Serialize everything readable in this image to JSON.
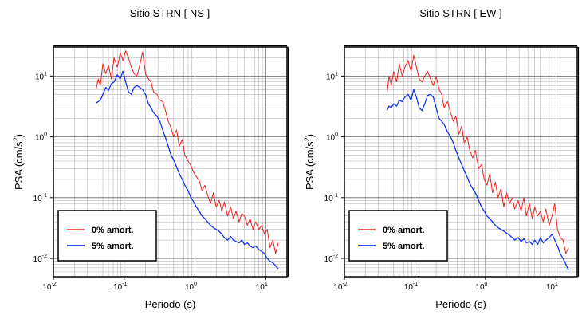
{
  "chart_data": [
    {
      "type": "line",
      "title": "Sitio STRN [ NS ]",
      "xlabel": "Periodo (s)",
      "ylabel_base": "PSA (cm/s",
      "ylabel_sup": "2",
      "ylabel_close": ")",
      "xscale": "log",
      "yscale": "log",
      "xlim": [
        0.01,
        20
      ],
      "ylim": [
        0.005,
        30
      ],
      "grid": true,
      "legend": "bottom-left",
      "xticks": [
        {
          "base": "10",
          "exp": "-2"
        },
        {
          "base": "10",
          "exp": "-1"
        },
        {
          "base": "10",
          "exp": "0"
        },
        {
          "base": "10",
          "exp": "1"
        }
      ],
      "yticks": [
        {
          "base": "10",
          "exp": "-2"
        },
        {
          "base": "10",
          "exp": "-1"
        },
        {
          "base": "10",
          "exp": "0"
        },
        {
          "base": "10",
          "exp": "1"
        }
      ],
      "series": [
        {
          "name": "0% amort.",
          "color": "#ee2222",
          "x": [
            0.04,
            0.043,
            0.046,
            0.05,
            0.055,
            0.06,
            0.066,
            0.072,
            0.08,
            0.088,
            0.096,
            0.105,
            0.115,
            0.126,
            0.138,
            0.151,
            0.166,
            0.182,
            0.2,
            0.22,
            0.24,
            0.26,
            0.29,
            0.32,
            0.35,
            0.38,
            0.42,
            0.46,
            0.5,
            0.55,
            0.6,
            0.66,
            0.72,
            0.8,
            0.88,
            0.96,
            1.05,
            1.15,
            1.26,
            1.38,
            1.51,
            1.66,
            1.82,
            2.0,
            2.2,
            2.4,
            2.6,
            2.9,
            3.2,
            3.5,
            3.8,
            4.2,
            4.6,
            5.0,
            5.5,
            6.0,
            6.6,
            7.2,
            8.0,
            8.8,
            9.6,
            10.5,
            11.5,
            12.6,
            13.8,
            15.0
          ],
          "y": [
            6,
            9,
            7,
            16,
            11,
            15,
            9,
            20,
            14,
            24,
            18,
            26,
            20,
            14,
            11,
            10,
            15,
            25,
            11,
            9,
            8,
            5.5,
            5,
            4,
            3.8,
            2.8,
            1.8,
            1.4,
            1.0,
            1.3,
            0.7,
            0.9,
            0.5,
            0.4,
            0.33,
            0.26,
            0.22,
            0.19,
            0.13,
            0.16,
            0.11,
            0.08,
            0.12,
            0.07,
            0.09,
            0.06,
            0.085,
            0.05,
            0.07,
            0.045,
            0.06,
            0.04,
            0.055,
            0.05,
            0.035,
            0.045,
            0.03,
            0.04,
            0.03,
            0.035,
            0.025,
            0.03,
            0.015,
            0.02,
            0.012,
            0.018
          ]
        },
        {
          "name": "5% amort.",
          "color": "#1133ee",
          "x": [
            0.04,
            0.043,
            0.046,
            0.05,
            0.055,
            0.06,
            0.066,
            0.072,
            0.08,
            0.088,
            0.096,
            0.105,
            0.115,
            0.126,
            0.138,
            0.151,
            0.166,
            0.182,
            0.2,
            0.22,
            0.24,
            0.26,
            0.29,
            0.32,
            0.35,
            0.38,
            0.42,
            0.46,
            0.5,
            0.55,
            0.6,
            0.66,
            0.72,
            0.8,
            0.88,
            0.96,
            1.05,
            1.15,
            1.26,
            1.38,
            1.51,
            1.66,
            1.82,
            2.0,
            2.2,
            2.4,
            2.6,
            2.9,
            3.2,
            3.5,
            3.8,
            4.2,
            4.6,
            5.0,
            5.5,
            6.0,
            6.6,
            7.2,
            8.0,
            8.8,
            9.6,
            10.5,
            11.5,
            12.6,
            13.8,
            15.0
          ],
          "y": [
            3.6,
            3.8,
            4.0,
            5.0,
            6.5,
            5.8,
            7.5,
            8.0,
            10.5,
            9.0,
            12.0,
            8.0,
            5.5,
            5.0,
            6.5,
            7.0,
            6.5,
            6.0,
            5.0,
            3.5,
            3.0,
            2.5,
            2.2,
            1.8,
            1.3,
            1.0,
            0.7,
            0.5,
            0.42,
            0.32,
            0.25,
            0.2,
            0.16,
            0.13,
            0.1,
            0.085,
            0.07,
            0.06,
            0.05,
            0.045,
            0.04,
            0.035,
            0.032,
            0.03,
            0.028,
            0.025,
            0.022,
            0.02,
            0.023,
            0.02,
            0.019,
            0.018,
            0.02,
            0.017,
            0.018,
            0.016,
            0.015,
            0.016,
            0.014,
            0.013,
            0.012,
            0.01,
            0.009,
            0.0085,
            0.0075,
            0.0068
          ]
        }
      ]
    },
    {
      "type": "line",
      "title": "Sitio STRN [ EW ]",
      "xlabel": "Periodo (s)",
      "ylabel_base": "PSA (cm/s",
      "ylabel_sup": "2",
      "ylabel_close": ")",
      "xscale": "log",
      "yscale": "log",
      "xlim": [
        0.01,
        20
      ],
      "ylim": [
        0.005,
        30
      ],
      "grid": true,
      "legend": "bottom-left",
      "xticks": [
        {
          "base": "10",
          "exp": "-2"
        },
        {
          "base": "10",
          "exp": "-1"
        },
        {
          "base": "10",
          "exp": "0"
        },
        {
          "base": "10",
          "exp": "1"
        }
      ],
      "yticks": [
        {
          "base": "10",
          "exp": "-2"
        },
        {
          "base": "10",
          "exp": "-1"
        },
        {
          "base": "10",
          "exp": "0"
        },
        {
          "base": "10",
          "exp": "1"
        }
      ],
      "series": [
        {
          "name": "0% amort.",
          "color": "#ee2222",
          "x": [
            0.04,
            0.043,
            0.046,
            0.05,
            0.055,
            0.06,
            0.066,
            0.072,
            0.08,
            0.088,
            0.096,
            0.105,
            0.115,
            0.126,
            0.138,
            0.151,
            0.166,
            0.182,
            0.2,
            0.22,
            0.24,
            0.26,
            0.29,
            0.32,
            0.35,
            0.38,
            0.42,
            0.46,
            0.5,
            0.55,
            0.6,
            0.66,
            0.72,
            0.8,
            0.88,
            0.96,
            1.05,
            1.15,
            1.26,
            1.38,
            1.51,
            1.66,
            1.82,
            2.0,
            2.2,
            2.4,
            2.6,
            2.9,
            3.2,
            3.5,
            3.8,
            4.2,
            4.6,
            5.0,
            5.5,
            6.0,
            6.6,
            7.2,
            8.0,
            8.8,
            9.6,
            10.5,
            11.5,
            12.6,
            13.8,
            15.0
          ],
          "y": [
            5,
            10,
            7,
            12,
            8,
            16,
            10,
            14,
            18,
            12,
            22,
            14,
            9,
            8,
            10,
            12,
            9,
            7,
            10,
            6,
            5,
            3,
            3.8,
            2.5,
            1.8,
            2.2,
            1.1,
            1.5,
            0.8,
            1.0,
            0.6,
            0.45,
            0.6,
            0.3,
            0.35,
            0.2,
            0.16,
            0.25,
            0.12,
            0.18,
            0.1,
            0.14,
            0.07,
            0.12,
            0.08,
            0.1,
            0.065,
            0.09,
            0.06,
            0.1,
            0.05,
            0.08,
            0.045,
            0.07,
            0.05,
            0.06,
            0.04,
            0.065,
            0.035,
            0.05,
            0.08,
            0.03,
            0.022,
            0.02,
            0.012,
            0.015
          ]
        },
        {
          "name": "5% amort.",
          "color": "#1133ee",
          "x": [
            0.04,
            0.043,
            0.046,
            0.05,
            0.055,
            0.06,
            0.066,
            0.072,
            0.08,
            0.088,
            0.096,
            0.105,
            0.115,
            0.126,
            0.138,
            0.151,
            0.166,
            0.182,
            0.2,
            0.22,
            0.24,
            0.26,
            0.29,
            0.32,
            0.35,
            0.38,
            0.42,
            0.46,
            0.5,
            0.55,
            0.6,
            0.66,
            0.72,
            0.8,
            0.88,
            0.96,
            1.05,
            1.15,
            1.26,
            1.38,
            1.51,
            1.66,
            1.82,
            2.0,
            2.2,
            2.4,
            2.6,
            2.9,
            3.2,
            3.5,
            3.8,
            4.2,
            4.6,
            5.0,
            5.5,
            6.0,
            6.6,
            7.2,
            8.0,
            8.8,
            9.6,
            10.5,
            11.5,
            12.6,
            13.8,
            15.0
          ],
          "y": [
            2.7,
            3.2,
            3.0,
            3.5,
            3.2,
            4.0,
            3.8,
            4.5,
            5.0,
            4.0,
            6.0,
            4.5,
            3.0,
            2.7,
            3.5,
            4.8,
            5.0,
            4.5,
            3.0,
            2.0,
            1.8,
            1.6,
            1.2,
            1.0,
            0.8,
            0.6,
            0.45,
            0.35,
            0.28,
            0.22,
            0.17,
            0.14,
            0.12,
            0.09,
            0.07,
            0.06,
            0.05,
            0.045,
            0.04,
            0.035,
            0.032,
            0.03,
            0.028,
            0.026,
            0.024,
            0.022,
            0.02,
            0.022,
            0.019,
            0.021,
            0.018,
            0.019,
            0.017,
            0.02,
            0.017,
            0.022,
            0.018,
            0.02,
            0.022,
            0.025,
            0.02,
            0.016,
            0.012,
            0.01,
            0.008,
            0.0065
          ]
        }
      ]
    }
  ]
}
